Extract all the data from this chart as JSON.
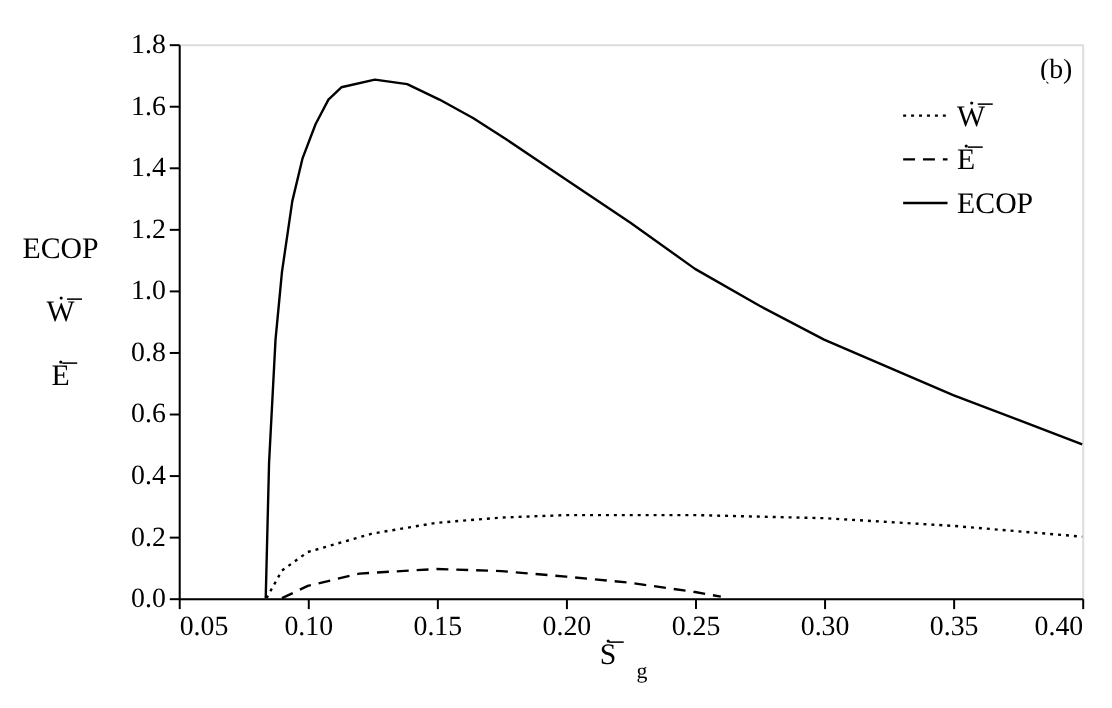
{
  "chart_data": {
    "type": "line",
    "xlabel": "Ṡ̅$_{g}$",
    "ylabel": "ECOP\nẆ̅\nĖ̅",
    "annotations": [
      "(b)"
    ],
    "xlim": [
      0.05,
      0.4
    ],
    "xticks": [
      {
        "value": 0.05,
        "label": "0.05"
      },
      {
        "value": 0.1,
        "label": "0.10"
      },
      {
        "value": 0.15,
        "label": "0.15"
      },
      {
        "value": 0.2,
        "label": "0.20"
      },
      {
        "value": 0.25,
        "label": "0.25"
      },
      {
        "value": 0.3,
        "label": "0.30"
      },
      {
        "value": 0.35,
        "label": "0.35"
      },
      {
        "value": 0.4,
        "label": "0.40"
      }
    ],
    "ylim": [
      0,
      1.8
    ],
    "yticks": [
      {
        "value": 0,
        "label": "0.0"
      },
      {
        "value": 0.2,
        "label": "0.2"
      },
      {
        "value": 0.4,
        "label": "0.4"
      },
      {
        "value": 0.6,
        "label": "0.6"
      },
      {
        "value": 0.8,
        "label": "0.8"
      },
      {
        "value": 1,
        "label": "1.0"
      },
      {
        "value": 1.2,
        "label": "1.2"
      },
      {
        "value": 1.4,
        "label": "1.4"
      },
      {
        "value": 1.6,
        "label": "1.6"
      },
      {
        "value": 1.8,
        "label": "1.8"
      }
    ],
    "grid": false,
    "legend": "top right",
    "marker": "none",
    "series": [
      {
        "name": "Ẇ̅",
        "color": "#000000",
        "line_style": "dotted",
        "x": [
          0.084,
          0.09,
          0.1,
          0.125,
          0.15,
          0.175,
          0.2,
          0.25,
          0.3,
          0.35,
          0.4
        ],
        "values": [
          0,
          0.09,
          0.15,
          0.21,
          0.245,
          0.262,
          0.27,
          0.27,
          0.26,
          0.235,
          0.2
        ]
      },
      {
        "name": "Ė̅",
        "color": "#000000",
        "line_style": "dashed",
        "x": [
          0.09,
          0.1,
          0.12,
          0.15,
          0.175,
          0.2,
          0.225,
          0.25,
          0.26
        ],
        "values": [
          0,
          0.04,
          0.08,
          0.095,
          0.088,
          0.07,
          0.05,
          0.02,
          0.005
        ]
      },
      {
        "name": "ECOP",
        "color": "#000000",
        "line_style": "solid",
        "x": [
          0.0837,
          0.085,
          0.0875,
          0.09,
          0.094,
          0.098,
          0.103,
          0.108,
          0.113,
          0.126,
          0.1385,
          0.151,
          0.164,
          0.177,
          0.1895,
          0.2,
          0.225,
          0.25,
          0.275,
          0.3,
          0.325,
          0.35,
          0.375,
          0.4
        ],
        "values": [
          0,
          0.44,
          0.84,
          1.06,
          1.29,
          1.43,
          1.54,
          1.62,
          1.66,
          1.685,
          1.67,
          1.62,
          1.56,
          1.49,
          1.42,
          1.36,
          1.22,
          1.07,
          0.95,
          0.84,
          0.75,
          0.66,
          0.58,
          0.5
        ]
      }
    ]
  }
}
